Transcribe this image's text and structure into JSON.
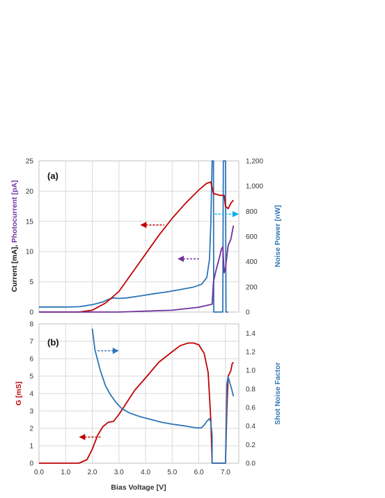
{
  "chart_data": [
    {
      "type": "line",
      "panel_label": "(a)",
      "ylabel_left": {
        "parts": [
          {
            "text": "Current [mA]",
            "color": "#111111"
          },
          {
            "text": ", ",
            "color": "#111111"
          },
          {
            "text": "Photocurrent [pA]",
            "color": "#7030a0"
          }
        ]
      },
      "ylabel_right": {
        "text": "Noise Power [nW]",
        "color": "#2e75b6"
      },
      "xlim": [
        0,
        7.5
      ],
      "ylim_left": [
        0,
        25
      ],
      "ylim_right": [
        0,
        1200
      ],
      "yticks_left": [
        "0",
        "5",
        "10",
        "15",
        "20",
        "25"
      ],
      "yticks_right": [
        "0",
        "200",
        "400",
        "600",
        "800",
        "1,000",
        "1,200"
      ],
      "grid": true,
      "series": [
        {
          "axis": "right",
          "color": "#2e75b6",
          "points": [
            [
              0,
              40
            ],
            [
              0.5,
              40
            ],
            [
              1,
              40
            ],
            [
              1.5,
              42
            ],
            [
              2,
              58
            ],
            [
              2.4,
              80
            ],
            [
              2.6,
              100
            ],
            [
              2.8,
              112
            ],
            [
              3,
              108
            ],
            [
              3.3,
              112
            ],
            [
              3.8,
              128
            ],
            [
              4.3,
              145
            ],
            [
              4.8,
              160
            ],
            [
              5.3,
              178
            ],
            [
              5.8,
              198
            ],
            [
              6.1,
              220
            ],
            [
              6.3,
              275
            ],
            [
              6.4,
              420
            ],
            [
              6.45,
              700
            ],
            [
              6.5,
              1200
            ],
            [
              6.55,
              1200
            ],
            [
              6.56,
              0
            ],
            [
              6.9,
              0
            ],
            [
              6.92,
              1200
            ],
            [
              7.0,
              1200
            ],
            [
              7.02,
              0
            ],
            [
              7.1,
              0
            ]
          ]
        },
        {
          "axis": "left",
          "color": "#c00000",
          "points": [
            [
              0,
              0
            ],
            [
              1.5,
              0
            ],
            [
              2,
              0.3
            ],
            [
              2.5,
              1.5
            ],
            [
              3,
              3.4
            ],
            [
              3.5,
              6.5
            ],
            [
              4,
              9.6
            ],
            [
              4.5,
              12.7
            ],
            [
              5,
              15.5
            ],
            [
              5.5,
              18
            ],
            [
              6,
              20.2
            ],
            [
              6.3,
              21.3
            ],
            [
              6.45,
              21.5
            ],
            [
              6.55,
              19.6
            ],
            [
              6.8,
              19.3
            ],
            [
              6.95,
              19.3
            ],
            [
              7.0,
              17.5
            ],
            [
              7.1,
              17.1
            ],
            [
              7.2,
              18.0
            ],
            [
              7.3,
              18.5
            ]
          ]
        },
        {
          "axis": "left",
          "color": "#7030a0",
          "points": [
            [
              0,
              0
            ],
            [
              3,
              0
            ],
            [
              5,
              0.3
            ],
            [
              6,
              0.8
            ],
            [
              6.5,
              1.3
            ],
            [
              6.55,
              5
            ],
            [
              6.65,
              7
            ],
            [
              6.75,
              8.6
            ],
            [
              6.85,
              10.4
            ],
            [
              6.9,
              10.8
            ],
            [
              6.95,
              6.5
            ],
            [
              7.0,
              7.3
            ],
            [
              7.1,
              11
            ],
            [
              7.2,
              12
            ],
            [
              7.3,
              14.3
            ]
          ]
        }
      ],
      "annotations": [
        {
          "arrow": "left",
          "color": "#c00000",
          "at": [
            3.8,
            14.4
          ],
          "to": [
            4.7,
            14.4
          ]
        },
        {
          "arrow": "left",
          "color": "#7030a0",
          "at": [
            5.2,
            8.8
          ],
          "to": [
            6.0,
            8.8
          ]
        },
        {
          "arrow": "right",
          "color": "#00b0f0",
          "at": [
            6.6,
            16.2
          ],
          "to": [
            7.5,
            16.2
          ]
        }
      ]
    },
    {
      "type": "line",
      "panel_label": "(b)",
      "xlabel": "Bias Voltage [V]",
      "ylabel_left": {
        "text": "G [mS]",
        "color": "#c00000"
      },
      "ylabel_right": {
        "text": "Shot Noise Factor",
        "color": "#2e75b6"
      },
      "xlim": [
        0,
        7.5
      ],
      "ylim_left": [
        0,
        8
      ],
      "ylim_right": [
        0,
        1.5
      ],
      "xticks": [
        "0.0",
        "1.0",
        "2.0",
        "3.0",
        "4.0",
        "5.0",
        "6.0",
        "7.0"
      ],
      "yticks_left": [
        "0",
        "1",
        "2",
        "3",
        "4",
        "5",
        "6",
        "7",
        "8"
      ],
      "yticks_right": [
        "0.0",
        "0.2",
        "0.4",
        "0.6",
        "0.8",
        "1.0",
        "1.2",
        "1.4"
      ],
      "grid": true,
      "series": [
        {
          "axis": "left",
          "color": "#c00000",
          "points": [
            [
              0,
              0
            ],
            [
              1.5,
              0
            ],
            [
              1.8,
              0.2
            ],
            [
              2,
              0.8
            ],
            [
              2.2,
              1.6
            ],
            [
              2.4,
              2.1
            ],
            [
              2.6,
              2.35
            ],
            [
              2.8,
              2.4
            ],
            [
              3,
              2.8
            ],
            [
              3.3,
              3.5
            ],
            [
              3.6,
              4.2
            ],
            [
              4,
              4.9
            ],
            [
              4.5,
              5.8
            ],
            [
              5,
              6.4
            ],
            [
              5.3,
              6.75
            ],
            [
              5.6,
              6.9
            ],
            [
              5.8,
              6.9
            ],
            [
              6,
              6.8
            ],
            [
              6.2,
              6.3
            ],
            [
              6.35,
              5.2
            ],
            [
              6.45,
              2.5
            ],
            [
              6.5,
              0
            ],
            [
              7.0,
              0
            ],
            [
              7.05,
              3.0
            ],
            [
              7.1,
              5.0
            ],
            [
              7.2,
              5.3
            ],
            [
              7.25,
              5.7
            ],
            [
              7.3,
              5.8
            ]
          ]
        },
        {
          "axis": "right",
          "color": "#2e75b6",
          "points": [
            [
              2.0,
              1.45
            ],
            [
              2.1,
              1.22
            ],
            [
              2.3,
              1.0
            ],
            [
              2.5,
              0.83
            ],
            [
              2.7,
              0.73
            ],
            [
              2.9,
              0.65
            ],
            [
              3.1,
              0.59
            ],
            [
              3.4,
              0.54
            ],
            [
              3.8,
              0.5
            ],
            [
              4.2,
              0.47
            ],
            [
              4.6,
              0.44
            ],
            [
              5,
              0.42
            ],
            [
              5.5,
              0.4
            ],
            [
              5.9,
              0.38
            ],
            [
              6.1,
              0.38
            ],
            [
              6.2,
              0.41
            ],
            [
              6.3,
              0.45
            ],
            [
              6.4,
              0.48
            ],
            [
              6.45,
              0.44
            ],
            [
              6.5,
              0.3
            ],
            [
              6.5,
              0
            ],
            [
              7.0,
              0
            ],
            [
              7.05,
              0.85
            ],
            [
              7.1,
              0.93
            ],
            [
              7.15,
              0.88
            ],
            [
              7.25,
              0.78
            ],
            [
              7.3,
              0.72
            ]
          ]
        }
      ],
      "annotations": [
        {
          "arrow": "right",
          "color": "#2e75b6",
          "at": [
            2.2,
            1.21
          ],
          "to": [
            3.0,
            1.21
          ]
        },
        {
          "arrow": "left",
          "color": "#c00000",
          "at": [
            1.5,
            1.5
          ],
          "to": [
            2.35,
            1.5
          ]
        }
      ]
    }
  ]
}
